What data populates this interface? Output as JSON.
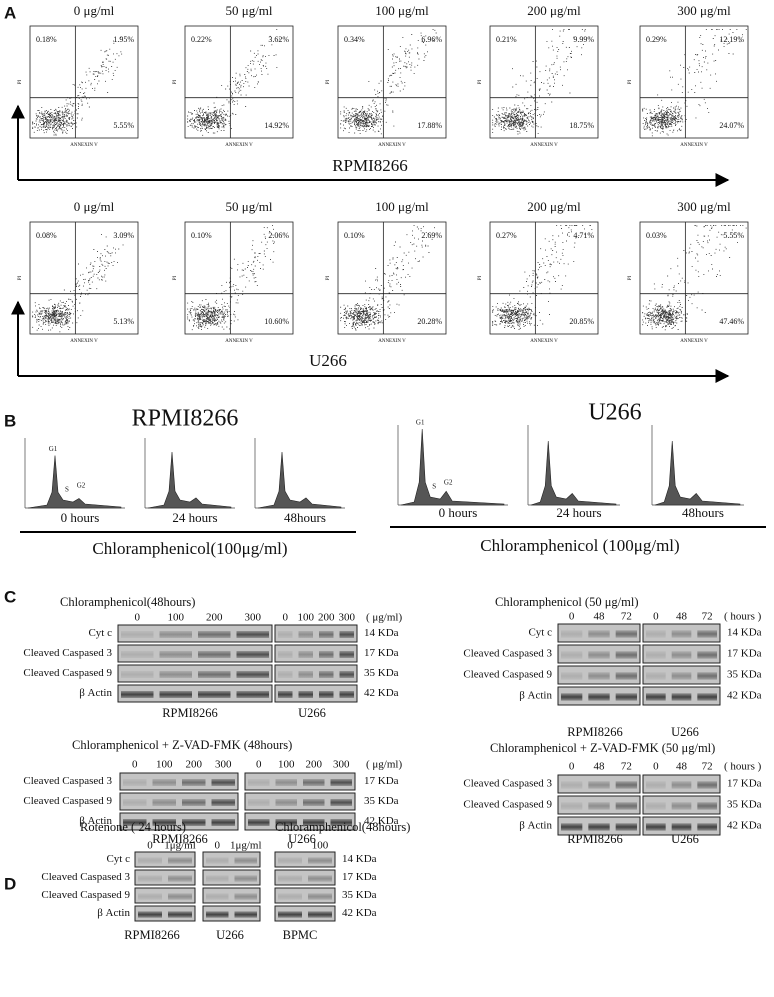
{
  "panel_a": {
    "label": "A",
    "y_axis_label": "PI",
    "x_axis_label": "ANNEXIN V",
    "rows": [
      {
        "cell_line": "RPMI8266",
        "plots": [
          {
            "concentration": "0  μg/ml",
            "quadrants": [
              "0.18%",
              "1.95%",
              "5.55%"
            ]
          },
          {
            "concentration": "50  μg/ml",
            "quadrants": [
              "0.22%",
              "3.62%",
              "14.92%"
            ]
          },
          {
            "concentration": "100  μg/ml",
            "quadrants": [
              "0.34%",
              "6.96%",
              "17.88%"
            ]
          },
          {
            "concentration": "200  μg/ml",
            "quadrants": [
              "0.21%",
              "9.99%",
              "18.75%"
            ]
          },
          {
            "concentration": "300  μg/ml",
            "quadrants": [
              "0.29%",
              "12.19%",
              "24.07%"
            ]
          }
        ]
      },
      {
        "cell_line": "U266",
        "plots": [
          {
            "concentration": "0  μg/ml",
            "quadrants": [
              "0.08%",
              "3.09%",
              "5.13%"
            ]
          },
          {
            "concentration": "50  μg/ml",
            "quadrants": [
              "0.10%",
              "2.06%",
              "10.60%"
            ]
          },
          {
            "concentration": "100  μg/ml",
            "quadrants": [
              "0.10%",
              "2.69%",
              "20.28%"
            ]
          },
          {
            "concentration": "200  μg/ml",
            "quadrants": [
              "0.27%",
              "4.71%",
              "20.85%"
            ]
          },
          {
            "concentration": "300  μg/ml",
            "quadrants": [
              "0.03%",
              "5.55%",
              "47.46%"
            ]
          }
        ]
      }
    ]
  },
  "panel_b": {
    "label": "B",
    "peak_labels": [
      "G1",
      "S",
      "G2"
    ],
    "groups": [
      {
        "cell_line": "RPMI8266",
        "times": [
          "0 hours",
          "24 hours",
          "48hours"
        ],
        "caption": "Chloramphenicol(100μg/ml)"
      },
      {
        "cell_line": "U266",
        "times": [
          "0 hours",
          "24 hours",
          "48hours"
        ],
        "caption": "Chloramphenicol (100μg/ml)"
      }
    ]
  },
  "panel_c": {
    "label": "C",
    "blots": [
      {
        "title": "Chloramphenicol(48hours)",
        "lanes": [
          "0",
          "100",
          "200",
          "300"
        ],
        "unit": "( μg/ml)",
        "rows": [
          "Cyt c",
          "Cleaved  Caspased 3",
          "Cleaved  Caspased 9",
          "β Actin"
        ],
        "sizes": [
          "14 KDa",
          "17 KDa",
          "35 KDa",
          "42 KDa"
        ],
        "cell_lines": [
          "RPMI8266",
          "U266"
        ]
      },
      {
        "title": "Chloramphenicol (50  μg/ml)",
        "lanes": [
          "0",
          "48",
          "72"
        ],
        "unit": "( hours )",
        "rows": [
          "Cyt c",
          "Cleaved  Caspased 3",
          "Cleaved  Caspased 9",
          "β Actin"
        ],
        "sizes": [
          "14 KDa",
          "17 KDa",
          "35 KDa",
          "42 KDa"
        ],
        "cell_lines": [
          "RPMI8266",
          "U266"
        ]
      },
      {
        "title": "Chloramphenicol + Z-VAD-FMK (48hours)",
        "lanes": [
          "0",
          "100",
          "200",
          "300"
        ],
        "unit": "( μg/ml)",
        "rows": [
          "Cleaved  Caspased 3",
          "Cleaved  Caspased 9",
          "β Actin"
        ],
        "sizes": [
          "17 KDa",
          "35 KDa",
          "42 KDa"
        ],
        "cell_lines": [
          "RPMI8266",
          "U266"
        ]
      },
      {
        "title": "Chloramphenicol + Z-VAD-FMK  (50  μg/ml)",
        "lanes": [
          "0",
          "48",
          "72"
        ],
        "unit": "( hours )",
        "rows": [
          "Cleaved  Caspased 3",
          "Cleaved  Caspased 9",
          "β Actin"
        ],
        "sizes": [
          "17 KDa",
          "35 KDa",
          "42 KDa"
        ],
        "cell_lines": [
          "RPMI8266",
          "U266"
        ]
      }
    ]
  },
  "panel_d": {
    "label": "D",
    "title": "Rotenone ( 24 hours)",
    "lanes": [
      "0",
      "1μg/ml"
    ],
    "title_2": "Chloramphenicol(48hours)",
    "lanes_2": [
      "0",
      "100"
    ],
    "rows": [
      "Cyt c",
      "Cleaved  Caspased 3",
      "Cleaved  Caspased 9",
      "β Actin"
    ],
    "sizes": [
      "14 KDa",
      "17 KDa",
      "35 KDa",
      "42 KDa"
    ],
    "cell_lines": [
      "RPMI8266",
      "U266",
      "BPMC"
    ]
  }
}
